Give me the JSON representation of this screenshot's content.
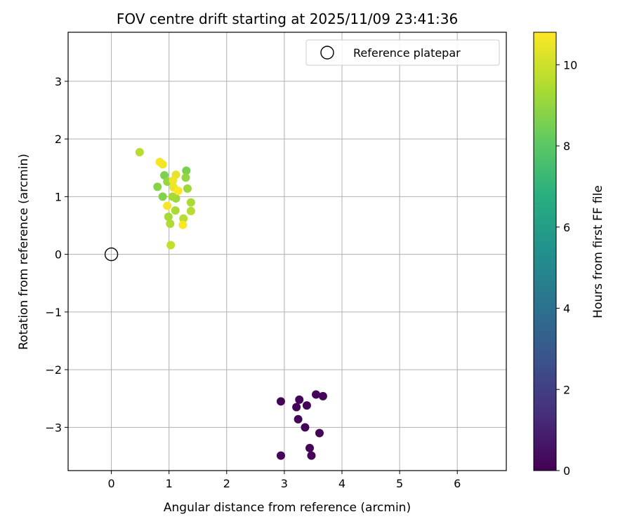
{
  "chart_data": {
    "type": "scatter",
    "title": "FOV centre drift starting at 2025/11/09 23:41:36",
    "xlabel": "Angular distance from reference (arcmin)",
    "ylabel": "Rotation from reference (arcmin)",
    "xlim": [
      -0.75,
      6.85
    ],
    "ylim": [
      -3.75,
      3.85
    ],
    "xticks": [
      0,
      1,
      2,
      3,
      4,
      5,
      6
    ],
    "yticks": [
      -3,
      -2,
      -1,
      0,
      1,
      2,
      3
    ],
    "grid": true,
    "legend": {
      "position": "top-right",
      "entries": [
        "Reference platepar"
      ]
    },
    "reference": {
      "x": 0,
      "y": 0,
      "label": "Reference platepar"
    },
    "colorbar": {
      "label": "Hours from first FF file",
      "min": 0,
      "max": 10.8,
      "ticks": [
        0,
        2,
        4,
        6,
        8,
        10
      ],
      "colormap": "viridis"
    },
    "points": [
      {
        "x": 0.49,
        "y": 1.77,
        "h": 9.6
      },
      {
        "x": 0.84,
        "y": 1.6,
        "h": 10.7
      },
      {
        "x": 0.89,
        "y": 1.56,
        "h": 10.6
      },
      {
        "x": 0.92,
        "y": 1.37,
        "h": 8.6
      },
      {
        "x": 0.8,
        "y": 1.17,
        "h": 8.8
      },
      {
        "x": 0.97,
        "y": 1.26,
        "h": 9.0
      },
      {
        "x": 0.89,
        "y": 1.0,
        "h": 8.7
      },
      {
        "x": 1.07,
        "y": 1.28,
        "h": 10.6
      },
      {
        "x": 1.12,
        "y": 1.38,
        "h": 10.4
      },
      {
        "x": 1.08,
        "y": 1.16,
        "h": 10.5
      },
      {
        "x": 1.16,
        "y": 1.1,
        "h": 10.8
      },
      {
        "x": 1.06,
        "y": 1.0,
        "h": 9.3
      },
      {
        "x": 1.12,
        "y": 0.97,
        "h": 9.2
      },
      {
        "x": 0.97,
        "y": 0.84,
        "h": 10.7
      },
      {
        "x": 1.11,
        "y": 0.76,
        "h": 9.4
      },
      {
        "x": 0.99,
        "y": 0.65,
        "h": 9.3
      },
      {
        "x": 1.02,
        "y": 0.53,
        "h": 9.5
      },
      {
        "x": 1.25,
        "y": 0.62,
        "h": 9.6
      },
      {
        "x": 1.24,
        "y": 0.51,
        "h": 10.8
      },
      {
        "x": 1.03,
        "y": 0.16,
        "h": 9.8
      },
      {
        "x": 1.3,
        "y": 1.45,
        "h": 8.6
      },
      {
        "x": 1.29,
        "y": 1.33,
        "h": 9.0
      },
      {
        "x": 1.32,
        "y": 1.14,
        "h": 9.2
      },
      {
        "x": 1.38,
        "y": 0.9,
        "h": 9.4
      },
      {
        "x": 1.38,
        "y": 0.75,
        "h": 9.6
      },
      {
        "x": 2.94,
        "y": -2.55,
        "h": 0.1
      },
      {
        "x": 3.26,
        "y": -2.52,
        "h": 0.1
      },
      {
        "x": 3.21,
        "y": -2.65,
        "h": 0.1
      },
      {
        "x": 3.39,
        "y": -2.62,
        "h": 0.1
      },
      {
        "x": 3.55,
        "y": -2.43,
        "h": 0.1
      },
      {
        "x": 3.67,
        "y": -2.46,
        "h": 0.1
      },
      {
        "x": 3.24,
        "y": -2.86,
        "h": 0.1
      },
      {
        "x": 3.36,
        "y": -3.0,
        "h": 0.1
      },
      {
        "x": 3.61,
        "y": -3.1,
        "h": 0.1
      },
      {
        "x": 3.44,
        "y": -3.36,
        "h": 0.1
      },
      {
        "x": 2.94,
        "y": -3.49,
        "h": 0.1
      },
      {
        "x": 3.47,
        "y": -3.49,
        "h": 0.1
      }
    ]
  }
}
